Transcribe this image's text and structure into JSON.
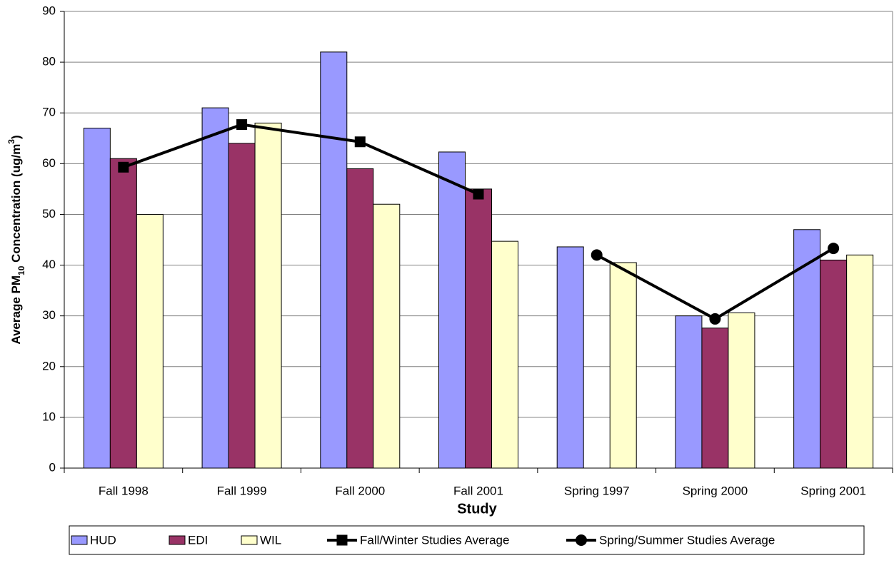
{
  "chart_data": {
    "type": "bar",
    "x_label": "Study",
    "y_label": [
      "Average PM",
      "10",
      " Concentration (ug/m",
      "3",
      ")"
    ],
    "categories": [
      "Fall 1998",
      "Fall 1999",
      "Fall 2000",
      "Fall 2001",
      "Spring 1997",
      "Spring 2000",
      "Spring 2001"
    ],
    "series": [
      {
        "name": "HUD",
        "type": "bar",
        "color": "#9999ff",
        "values": [
          67,
          71,
          82,
          62.3,
          43.6,
          30,
          47
        ]
      },
      {
        "name": "EDI",
        "type": "bar",
        "color": "#993366",
        "values": [
          61,
          64,
          59,
          55,
          null,
          27.6,
          41
        ]
      },
      {
        "name": "WIL",
        "type": "bar",
        "color": "#ffffcc",
        "values": [
          50,
          68,
          52,
          44.7,
          40.5,
          30.6,
          42
        ]
      },
      {
        "name": "Fall/Winter Studies Average",
        "type": "line",
        "marker": "square",
        "color": "#000000",
        "values": [
          59.3,
          67.7,
          64.3,
          54,
          null,
          null,
          null
        ]
      },
      {
        "name": "Spring/Summer Studies Average",
        "type": "line",
        "marker": "circle",
        "color": "#000000",
        "values": [
          null,
          null,
          null,
          null,
          42,
          29.4,
          43.3
        ]
      }
    ],
    "ylim": [
      0,
      90
    ],
    "yticks": [
      0,
      10,
      20,
      30,
      40,
      50,
      60,
      70,
      80,
      90
    ],
    "grid": true,
    "legend": "bottom"
  }
}
